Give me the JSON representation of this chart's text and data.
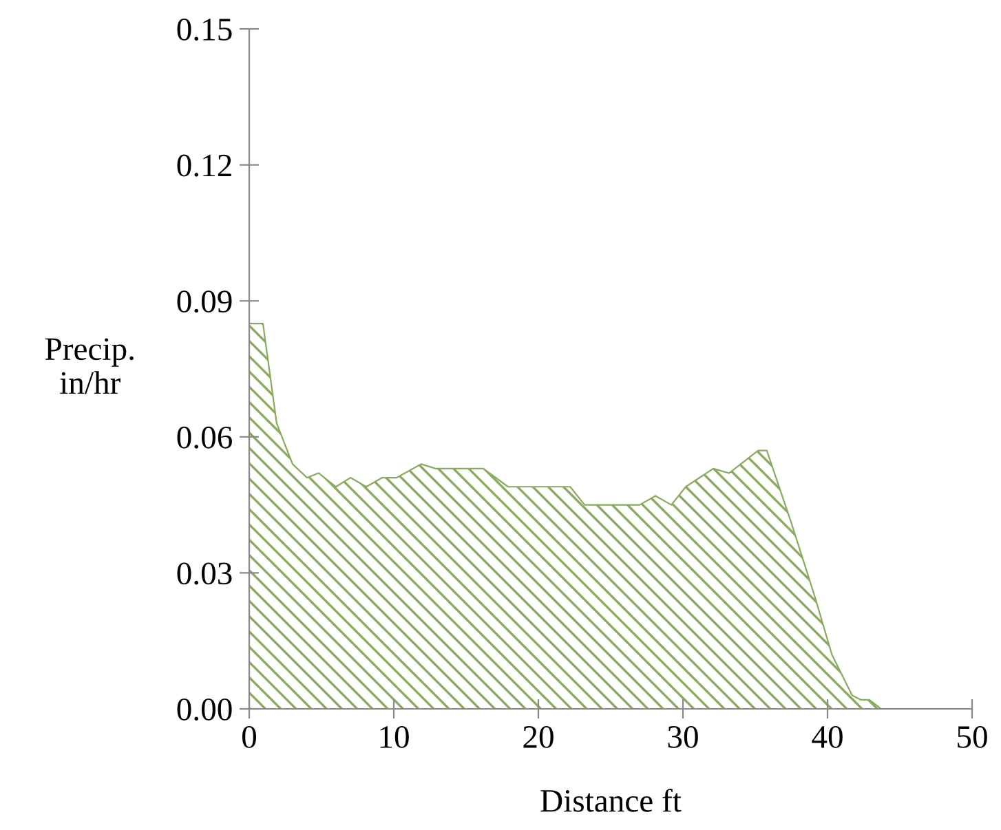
{
  "chart_data": {
    "type": "area",
    "xlabel": "Distance ft",
    "ylabel": "Precip.\nin/hr",
    "x": [
      0,
      0.95,
      1.9,
      3.0,
      4.0,
      4.8,
      6.0,
      7.0,
      8.1,
      9.2,
      10.2,
      11.9,
      12.9,
      16.2,
      17.9,
      22.2,
      23.2,
      27.0,
      28.1,
      29.2,
      30.2,
      32.1,
      33.2,
      35.2,
      35.8,
      37.5,
      39.1,
      40.3,
      41.7,
      42.3,
      42.9,
      43.7
    ],
    "series": [
      {
        "color": "#8aaa60",
        "values": [
          0.085,
          0.085,
          0.063,
          0.054,
          0.051,
          0.052,
          0.049,
          0.051,
          0.049,
          0.051,
          0.051,
          0.054,
          0.053,
          0.053,
          0.049,
          0.049,
          0.045,
          0.045,
          0.047,
          0.045,
          0.049,
          0.053,
          0.052,
          0.057,
          0.057,
          0.041,
          0.025,
          0.012,
          0.003,
          0.002,
          0.002,
          0
        ]
      }
    ],
    "xlim": [
      0,
      50
    ],
    "ylim": [
      0,
      0.15
    ],
    "xticks": [
      0,
      10,
      20,
      30,
      40,
      50
    ],
    "yticks": [
      {
        "value": 0,
        "label": "0.00"
      },
      {
        "value": 0.03,
        "label": "0.03"
      },
      {
        "value": 0.06,
        "label": "0.06"
      },
      {
        "value": 0.09,
        "label": "0.09"
      },
      {
        "value": 0.12,
        "label": "0.12"
      },
      {
        "value": 0.15,
        "label": "0.15"
      }
    ],
    "grid": false,
    "legend": false
  }
}
